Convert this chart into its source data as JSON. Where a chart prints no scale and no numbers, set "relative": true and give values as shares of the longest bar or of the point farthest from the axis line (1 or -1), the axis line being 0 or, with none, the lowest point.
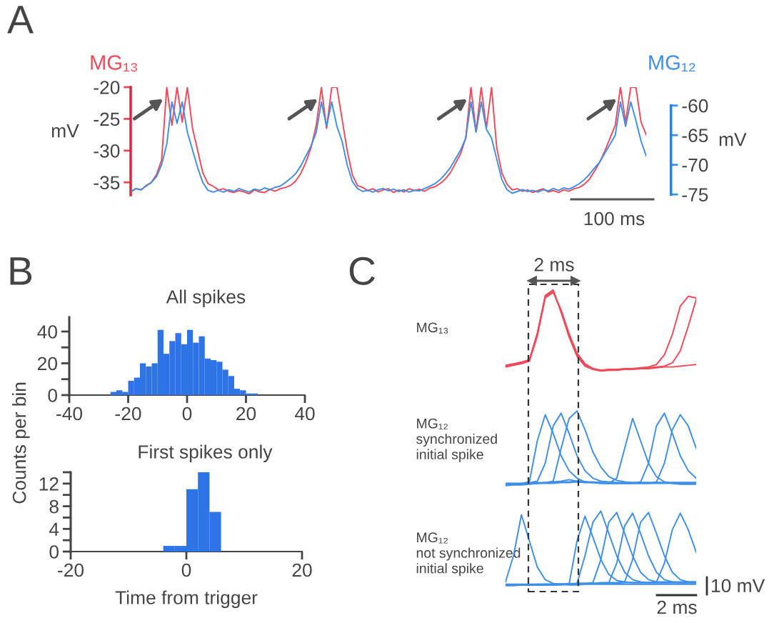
{
  "chart_data": [
    {
      "type": "line",
      "annotations": [
        "A",
        "100 ms"
      ],
      "ylabel": "mV",
      "y2label": "mV",
      "categories": [
        null,
        null,
        null,
        null,
        null,
        null,
        null,
        null,
        null,
        null,
        null,
        null,
        null,
        null,
        null,
        null,
        null,
        null,
        null,
        null,
        null,
        null,
        null,
        null,
        null,
        null,
        null,
        null,
        null,
        null,
        null,
        null,
        null,
        null,
        null,
        null,
        null,
        null,
        null,
        null,
        null,
        null,
        null,
        null,
        null,
        null,
        null,
        null,
        null,
        null,
        null,
        null,
        null,
        null,
        null,
        null,
        null,
        null,
        null,
        null,
        null,
        null,
        null,
        null,
        null,
        null,
        null,
        null,
        null,
        null,
        null,
        null,
        null,
        null,
        null,
        null,
        null,
        null,
        null,
        null,
        null,
        null,
        null,
        null,
        null,
        null,
        null,
        null,
        null,
        null,
        null,
        null,
        null,
        null,
        null,
        null,
        null,
        null,
        null,
        null,
        null
      ],
      "series": [
        {
          "name": "MG₁₃",
          "color": "#f04a5a",
          "values": [
            -36.5,
            -36.0,
            -36.2,
            -35.5,
            -35.0,
            -33.8,
            -31.5,
            -20,
            -26,
            -20,
            -25.5,
            -20,
            -26.5,
            -30,
            -33.5,
            -35.2,
            -35.6,
            -36.2,
            -36.0,
            -36.4,
            -36.6,
            -36.3,
            -36.5,
            -36.8,
            -36.2,
            -36.5,
            -36.6,
            -36.1,
            -36.4,
            -36.0,
            -35.8,
            -35.5,
            -34.8,
            -33.6,
            -31.8,
            -29.5,
            -26.0,
            -20,
            -26.5,
            -20,
            -20,
            -25,
            -30,
            -33.8,
            -35.5,
            -35.8,
            -36.3,
            -36.0,
            -36.5,
            -36.2,
            -36.0,
            -36.6,
            -36.2,
            -36.5,
            -36.0,
            -36.3,
            -36.1,
            -36.4,
            -35.9,
            -35.7,
            -35.2,
            -34.5,
            -33.5,
            -32.0,
            -30.5,
            -28.0,
            -20,
            -27,
            -20,
            -26.5,
            -20,
            -29.5,
            -33.5,
            -35.3,
            -36.2,
            -36.0,
            -36.4,
            -36.2,
            -36.6,
            -36.3,
            -36.0,
            -36.5,
            -36.3,
            -36.6,
            -36.2,
            -36.4,
            -36.0,
            -35.8,
            -35.3,
            -34.5,
            -33.2,
            -31.8,
            -30.0,
            -28.0,
            -26.0,
            -20,
            -25.5,
            -20,
            -20,
            -25.5,
            -27.5
          ]
        },
        {
          "name": "MG₁₂",
          "color": "#3f8fe8",
          "axis": "y2",
          "values": [
            -74.5,
            -74.0,
            -74.2,
            -73.6,
            -73.0,
            -72.0,
            -70.0,
            -66.5,
            -59.4,
            -63,
            -59.4,
            -64.5,
            -67.5,
            -70.5,
            -73.0,
            -74.3,
            -74.6,
            -74.3,
            -74.6,
            -74.2,
            -74.5,
            -74.0,
            -74.3,
            -74.6,
            -74.1,
            -74.3,
            -73.9,
            -74.2,
            -73.8,
            -73.6,
            -73.0,
            -72.3,
            -71.5,
            -70.2,
            -68.5,
            -66.8,
            -64.5,
            -59.4,
            -63.5,
            -59.4,
            -63.5,
            -66.0,
            -70.0,
            -72.8,
            -74.0,
            -74.5,
            -74.3,
            -74.6,
            -74.2,
            -74.0,
            -74.4,
            -74.1,
            -74.5,
            -74.2,
            -74.6,
            -74.3,
            -74.4,
            -74.0,
            -73.6,
            -73.2,
            -72.5,
            -71.6,
            -70.5,
            -69.0,
            -67.5,
            -65.5,
            -59.4,
            -64.5,
            -59.4,
            -64.0,
            -65.5,
            -69.0,
            -72.5,
            -74.2,
            -74.8,
            -74.5,
            -74.2,
            -74.5,
            -74.3,
            -74.6,
            -74.2,
            -74.4,
            -74.0,
            -74.3,
            -73.9,
            -74.1,
            -73.7,
            -73.2,
            -72.5,
            -71.6,
            -70.5,
            -69.5,
            -68.0,
            -66.5,
            -65.0,
            -59.4,
            -63.5,
            -59.4,
            -62.5,
            -66.0,
            -68.5
          ]
        }
      ],
      "ylim": [
        -37,
        -20
      ],
      "yticks": [
        -20,
        -25,
        -30,
        -35
      ],
      "y2lim": [
        -75.1,
        -56.9
      ],
      "y2ticks": [
        -60,
        -65,
        -70,
        -75
      ]
    },
    {
      "type": "histogram",
      "title": "All spikes",
      "annotations": [
        "B"
      ],
      "color": "#2f74e6",
      "bins": [
        -26,
        -24,
        -22,
        -20,
        -18,
        -16,
        -14,
        -12,
        -10,
        -8,
        -6,
        -4,
        -2,
        0,
        2,
        4,
        6,
        8,
        10,
        12,
        14,
        16,
        18,
        20,
        22,
        24
      ],
      "values": [
        2,
        3,
        2,
        9,
        11,
        20,
        18,
        20,
        41,
        26,
        34,
        39,
        32,
        41,
        33,
        37,
        23,
        22,
        21,
        16,
        12,
        4,
        3,
        1,
        1
      ],
      "xlim": [
        -40,
        40
      ],
      "xticks": [
        -40,
        -20,
        0,
        20,
        40
      ],
      "ylim": [
        0,
        49
      ],
      "yticks": [
        0,
        {
          "value": 10,
          "label": null
        },
        20,
        {
          "value": 30,
          "label": null
        },
        40
      ]
    },
    {
      "type": "histogram",
      "title": "First spikes only",
      "xlabel": "Time from trigger",
      "ylabel": "Counts per bin",
      "color": "#2f74e6",
      "bins": [
        -4,
        -2,
        0,
        2,
        4,
        6
      ],
      "values": [
        1,
        1,
        11,
        14,
        7
      ],
      "xlim": [
        -20,
        20
      ],
      "xticks": [
        -20,
        0,
        20
      ],
      "ylim": [
        0,
        14
      ],
      "yticks": [
        0,
        {
          "value": 2,
          "label": null
        },
        4,
        {
          "value": 6,
          "label": null
        },
        8,
        {
          "value": 10,
          "label": null
        },
        12,
        {
          "value": 14,
          "label": null
        }
      ]
    },
    {
      "type": "line",
      "relative": true,
      "ylabel": "MG₁₃",
      "annotations": [
        "C",
        "2 ms"
      ],
      "categories": [
        null,
        null,
        null,
        null,
        null,
        null,
        null,
        null,
        null,
        null,
        null,
        null,
        null,
        null,
        null,
        null,
        null,
        null,
        null,
        null,
        null,
        null,
        null,
        null,
        null
      ],
      "series": [
        {
          "color": "#f04a5a",
          "values": [
            0.06,
            0.08,
            0.1,
            0.13,
            0.45,
            0.93,
            1.0,
            0.72,
            0.42,
            0.18,
            0.06,
            0.02,
            0,
            0.01,
            0.01,
            0.02,
            0.02,
            0.03,
            0.03,
            0.04,
            0.05,
            0.05,
            0.06,
            0.07,
            0.08
          ]
        },
        {
          "color": "#f04a5a",
          "values": [
            0.07,
            0.09,
            0.11,
            0.14,
            0.47,
            0.92,
            0.98,
            0.74,
            0.45,
            0.2,
            0.08,
            0.03,
            0.01,
            0.02,
            0.02,
            0.03,
            0.03,
            0.04,
            0.05,
            0.08,
            0.2,
            0.45,
            0.8,
            0.92,
            0.9
          ]
        },
        {
          "color": "#f04a5a",
          "values": [
            0.05,
            0.07,
            0.09,
            0.12,
            0.43,
            0.9,
            0.97,
            0.75,
            0.46,
            0.22,
            0.09,
            0.03,
            0.01,
            0.01,
            0.02,
            0.02,
            0.03,
            0.03,
            0.04,
            0.05,
            0.06,
            0.1,
            0.25,
            0.55,
            0.88
          ]
        }
      ]
    },
    {
      "type": "line",
      "relative": true,
      "ylabel": "MG₁₂\nsynchronized\ninitial spike",
      "categories": [
        null,
        null,
        null,
        null,
        null,
        null,
        null,
        null,
        null,
        null,
        null,
        null,
        null,
        null,
        null,
        null,
        null,
        null,
        null,
        null,
        null,
        null,
        null,
        null,
        null
      ],
      "series": [
        {
          "color": "#3f8fe8",
          "values": [
            0.02,
            0.02,
            0.03,
            0.05,
            0.6,
            0.95,
            0.7,
            0.4,
            0.2,
            0.1,
            0.05,
            0.04,
            0.03,
            0.03,
            0.03,
            0.03,
            0.03,
            0.03,
            0.03,
            0.03,
            0.03,
            0.03,
            0.03,
            0.03,
            0.03
          ]
        },
        {
          "color": "#3f8fe8",
          "values": [
            0.03,
            0.03,
            0.03,
            0.04,
            0.06,
            0.3,
            0.8,
            0.97,
            0.7,
            0.4,
            0.2,
            0.1,
            0.06,
            0.05,
            0.04,
            0.04,
            0.04,
            0.04,
            0.04,
            0.04,
            0.04,
            0.04,
            0.04,
            0.04,
            0.04
          ]
        },
        {
          "color": "#3f8fe8",
          "values": [
            0,
            0.01,
            0.01,
            0.02,
            0.03,
            0.04,
            0.06,
            0.5,
            0.9,
            1.0,
            0.75,
            0.45,
            0.25,
            0.12,
            0.07,
            0.05,
            0.04,
            0.04,
            0.04,
            0.04,
            0.04,
            0.04,
            0.04,
            0.04,
            0.04
          ]
        },
        {
          "color": "#3f8fe8",
          "values": [
            0.03,
            0.03,
            0.03,
            0.03,
            0.04,
            0.04,
            0.05,
            0.06,
            0.08,
            0.06,
            0.05,
            0.05,
            0.04,
            0.03,
            0.1,
            0.5,
            0.9,
            0.6,
            0.3,
            0.12,
            0.05,
            0.03,
            0.02,
            0.02,
            0.02
          ]
        },
        {
          "color": "#3f8fe8",
          "values": [
            0.02,
            0.02,
            0.02,
            0.03,
            0.03,
            0.03,
            0.03,
            0.04,
            0.04,
            0.05,
            0.04,
            0.04,
            0.03,
            0.03,
            0.03,
            0.03,
            0.03,
            0.05,
            0.3,
            0.8,
            0.97,
            0.7,
            0.4,
            0.2,
            0.1
          ]
        },
        {
          "color": "#3f8fe8",
          "values": [
            0.03,
            0.03,
            0.03,
            0.03,
            0.03,
            0.04,
            0.04,
            0.05,
            0.05,
            0.06,
            0.05,
            0.04,
            0.04,
            0.03,
            0.03,
            0.03,
            0.03,
            0.03,
            0.03,
            0.05,
            0.3,
            0.75,
            0.95,
            0.8,
            0.5
          ]
        }
      ]
    },
    {
      "type": "line",
      "relative": true,
      "ylabel": "MG₁₂\nnot synchronized\ninitial spike",
      "annotations": [
        "10 mV",
        "2 ms"
      ],
      "categories": [
        null,
        null,
        null,
        null,
        null,
        null,
        null,
        null,
        null,
        null,
        null,
        null,
        null,
        null,
        null,
        null,
        null,
        null,
        null,
        null,
        null,
        null,
        null,
        null,
        null
      ],
      "series": [
        {
          "color": "#3f8fe8",
          "values": [
            0.05,
            0.4,
            0.95,
            0.6,
            0.25,
            0.08,
            0.03,
            0.02,
            0.01,
            0.01,
            0.02,
            0.02,
            0.02,
            0.02,
            0.02,
            0.02,
            0.02,
            0.02,
            0.02,
            0.02,
            0.02,
            0.02,
            0.02,
            0.02,
            0.02
          ]
        },
        {
          "color": "#3f8fe8",
          "values": [
            0.01,
            0.01,
            0.01,
            0.01,
            0.01,
            0.01,
            0.01,
            0.01,
            0.02,
            0.6,
            0.93,
            0.65,
            0.35,
            0.15,
            0.07,
            0.05,
            0.04,
            0.04,
            0.04,
            0.04,
            0.04,
            0.04,
            0.04,
            0.04,
            0.04
          ]
        },
        {
          "color": "#3f8fe8",
          "values": [
            0,
            0,
            0.01,
            0.01,
            0.01,
            0.01,
            0.01,
            0.02,
            0.02,
            0.03,
            0.4,
            0.85,
            1.0,
            0.7,
            0.4,
            0.18,
            0.08,
            0.05,
            0.04,
            0.04,
            0.04,
            0.04,
            0.04,
            0.04,
            0.04
          ]
        },
        {
          "color": "#3f8fe8",
          "values": [
            0.01,
            0.01,
            0.01,
            0.01,
            0.01,
            0.01,
            0.02,
            0.02,
            0.02,
            0.03,
            0.03,
            0.04,
            0.35,
            0.85,
            0.98,
            0.7,
            0.4,
            0.18,
            0.08,
            0.05,
            0.05,
            0.05,
            0.05,
            0.05,
            0.05
          ]
        },
        {
          "color": "#3f8fe8",
          "values": [
            0.01,
            0.01,
            0.01,
            0.01,
            0.01,
            0.02,
            0.02,
            0.02,
            0.02,
            0.03,
            0.03,
            0.03,
            0.04,
            0.04,
            0.3,
            0.8,
            0.97,
            0.7,
            0.4,
            0.18,
            0.08,
            0.05,
            0.04,
            0.04,
            0.04
          ]
        },
        {
          "color": "#3f8fe8",
          "values": [
            0.01,
            0.01,
            0.01,
            0.01,
            0.02,
            0.02,
            0.02,
            0.02,
            0.03,
            0.03,
            0.03,
            0.03,
            0.03,
            0.04,
            0.04,
            0.05,
            0.35,
            0.85,
            0.98,
            0.7,
            0.4,
            0.18,
            0.08,
            0.05,
            0.05
          ]
        },
        {
          "color": "#3f8fe8",
          "values": [
            0.02,
            0.02,
            0.02,
            0.02,
            0.02,
            0.02,
            0.02,
            0.02,
            0.02,
            0.03,
            0.03,
            0.03,
            0.03,
            0.03,
            0.03,
            0.04,
            0.04,
            0.04,
            0.04,
            0.05,
            0.3,
            0.75,
            0.97,
            0.75,
            0.45
          ]
        }
      ]
    }
  ]
}
